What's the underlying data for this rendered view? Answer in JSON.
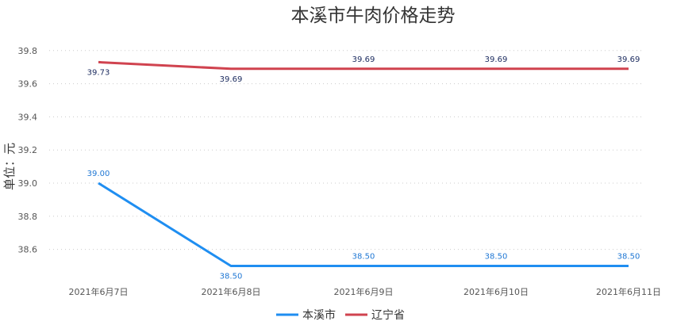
{
  "chart_data": {
    "type": "line",
    "title": "本溪市牛肉价格走势",
    "ylabel": "单位：元",
    "xlabel": "",
    "categories": [
      "2021年6月7日",
      "2021年6月8日",
      "2021年6月9日",
      "2021年6月10日",
      "2021年6月11日"
    ],
    "series": [
      {
        "name": "本溪市",
        "color": "#1f8ef1",
        "values": [
          39.0,
          38.5,
          38.5,
          38.5,
          38.5
        ],
        "labels": [
          "39.00",
          "38.50",
          "38.50",
          "38.50",
          "38.50"
        ],
        "label_color": "#1f77d4"
      },
      {
        "name": "辽宁省",
        "color": "#d0434f",
        "values": [
          39.73,
          39.69,
          39.69,
          39.69,
          39.69
        ],
        "labels": [
          "39.73",
          "39.69",
          "39.69",
          "39.69",
          "39.69"
        ],
        "label_color": "#1a2a5e"
      }
    ],
    "yticks": [
      "38.6",
      "38.8",
      "39.0",
      "39.2",
      "39.4",
      "39.6",
      "39.8"
    ],
    "ylim": [
      38.5,
      39.8
    ],
    "grid": true,
    "legend_position": "bottom-center"
  }
}
